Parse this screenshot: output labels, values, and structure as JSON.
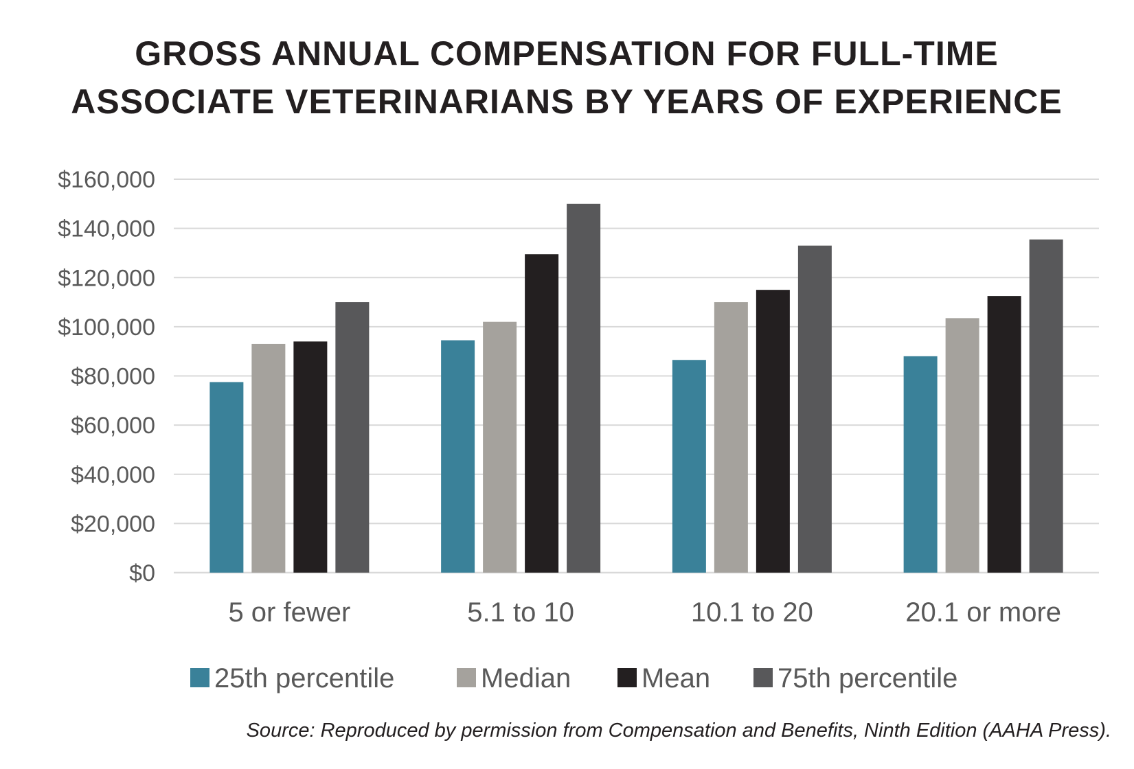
{
  "chart_data": {
    "type": "bar",
    "title_lines": [
      "GROSS ANNUAL COMPENSATION FOR FULL-TIME",
      "ASSOCIATE VETERINARIANS BY YEARS OF EXPERIENCE"
    ],
    "categories": [
      "5 or fewer",
      "5.1 to 10",
      "10.1 to 20",
      "20.1 or more"
    ],
    "series": [
      {
        "name": "25th percentile",
        "color": "#3a8199",
        "values": [
          77500,
          94500,
          86500,
          88000
        ]
      },
      {
        "name": "Median",
        "color": "#a5a29d",
        "values": [
          93000,
          102000,
          110000,
          103500
        ]
      },
      {
        "name": "Mean",
        "color": "#231f20",
        "values": [
          94000,
          129500,
          115000,
          112500
        ]
      },
      {
        "name": "75th percentile",
        "color": "#58585a",
        "values": [
          110000,
          150000,
          133000,
          135500
        ]
      }
    ],
    "ylim": [
      0,
      160000
    ],
    "y_ticks": [
      0,
      20000,
      40000,
      60000,
      80000,
      100000,
      120000,
      140000,
      160000
    ],
    "y_tick_labels": [
      "$0",
      "$20,000",
      "$40,000",
      "$60,000",
      "$80,000",
      "$100,000",
      "$120,000",
      "$140,000",
      "$160,000"
    ],
    "xlabel": "",
    "ylabel": "",
    "grid": true,
    "legend_position": "bottom",
    "source": "Source: Reproduced by permission from Compensation and Benefits, Ninth Edition (AAHA Press)."
  }
}
